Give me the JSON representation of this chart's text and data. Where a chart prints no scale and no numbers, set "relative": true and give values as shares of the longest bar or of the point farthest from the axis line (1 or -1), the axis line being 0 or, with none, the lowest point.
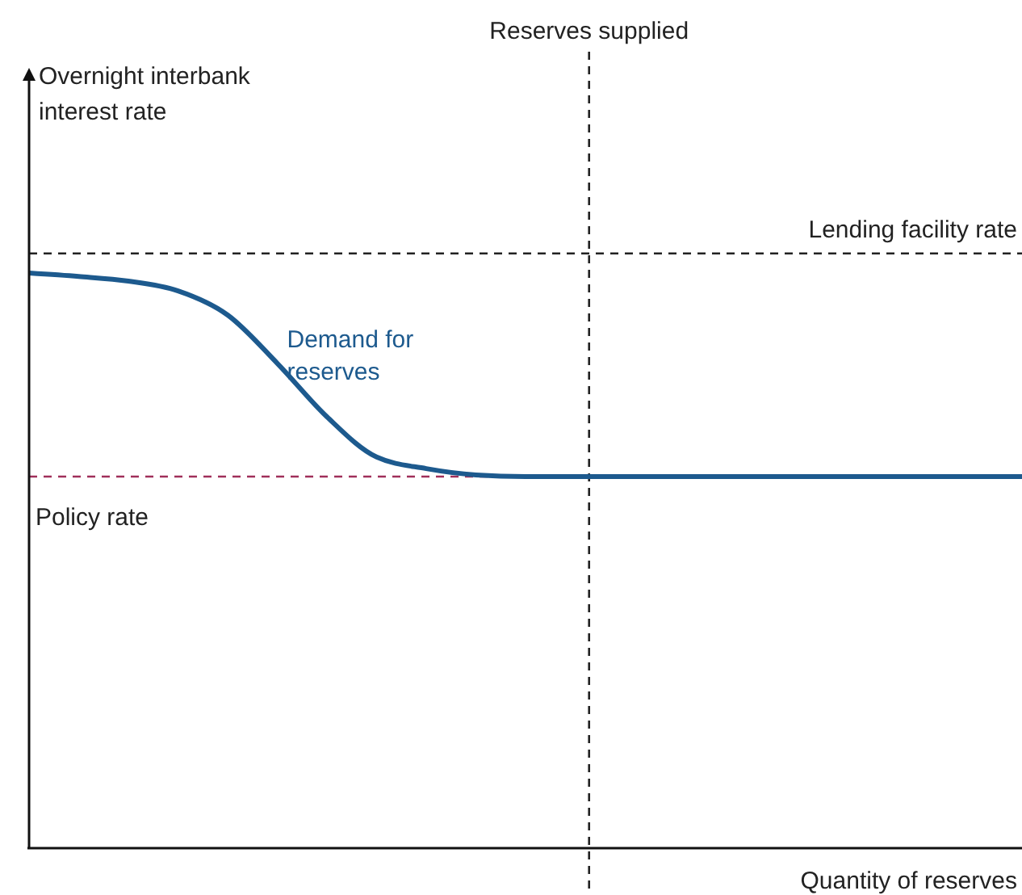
{
  "chart_data": {
    "type": "line",
    "relative": true,
    "xlabel": "Quantity of reserves",
    "annotations": [
      "Overnight interbank interest rate",
      "Reserves supplied"
    ],
    "categories": [
      null,
      null,
      null,
      null,
      null,
      null,
      null,
      null,
      null,
      null,
      null,
      null,
      null,
      null,
      null,
      null,
      null,
      null,
      null,
      null,
      null
    ],
    "series": [
      {
        "name": "Demand for reserves",
        "color": "#1d5a8e",
        "values": [
          1,
          0.994,
          0.986,
          0.969,
          0.927,
          0.843,
          0.75,
          0.68,
          0.66,
          0.649,
          0.646,
          0.646,
          0.646,
          0.646,
          0.646,
          0.646,
          0.646,
          0.646,
          0.646,
          0.646,
          0.646
        ]
      }
    ],
    "ref_lines": [
      {
        "axis": "y",
        "value": 1.034,
        "label": "Lending facility rate",
        "color": "#222222",
        "line_style": "dashed"
      },
      {
        "axis": "y",
        "value": 0.646,
        "label": "Policy rate",
        "color": "#a0305a",
        "line_style": "dashed"
      }
    ],
    "legend": false,
    "grid": false,
    "marker": "none",
    "line_style": "solid"
  }
}
